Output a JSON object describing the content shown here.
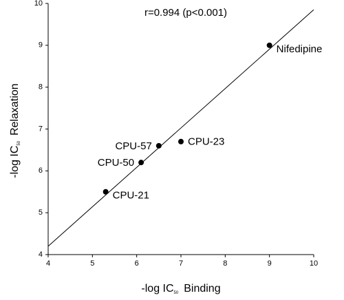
{
  "chart_data": {
    "type": "scatter",
    "annotation": "r=0.994 (p<0.001)",
    "x_label": "-log IC",
    "x_label_sub": "50",
    "x_label_rest": "Binding",
    "y_label": "-log IC",
    "y_label_sub": "50",
    "y_label_rest": "Relaxation",
    "labels": [
      "Nifedipine",
      "CPU-23",
      "CPU-57",
      "CPU-50",
      "CPU-21"
    ],
    "x": [
      9.0,
      7.0,
      6.5,
      6.1,
      5.3
    ],
    "values": [
      9.0,
      6.7,
      6.6,
      6.2,
      5.5
    ],
    "color": "#000000",
    "fit_line": {
      "x": [
        4,
        10
      ],
      "values": [
        4.2,
        9.85
      ]
    },
    "xlim": [
      4,
      10
    ],
    "xticks": [
      4,
      5,
      6,
      7,
      8,
      9,
      10
    ],
    "ylim": [
      4,
      10
    ],
    "yticks": [
      4,
      5,
      6,
      7,
      8,
      9,
      10
    ],
    "grid": false
  }
}
